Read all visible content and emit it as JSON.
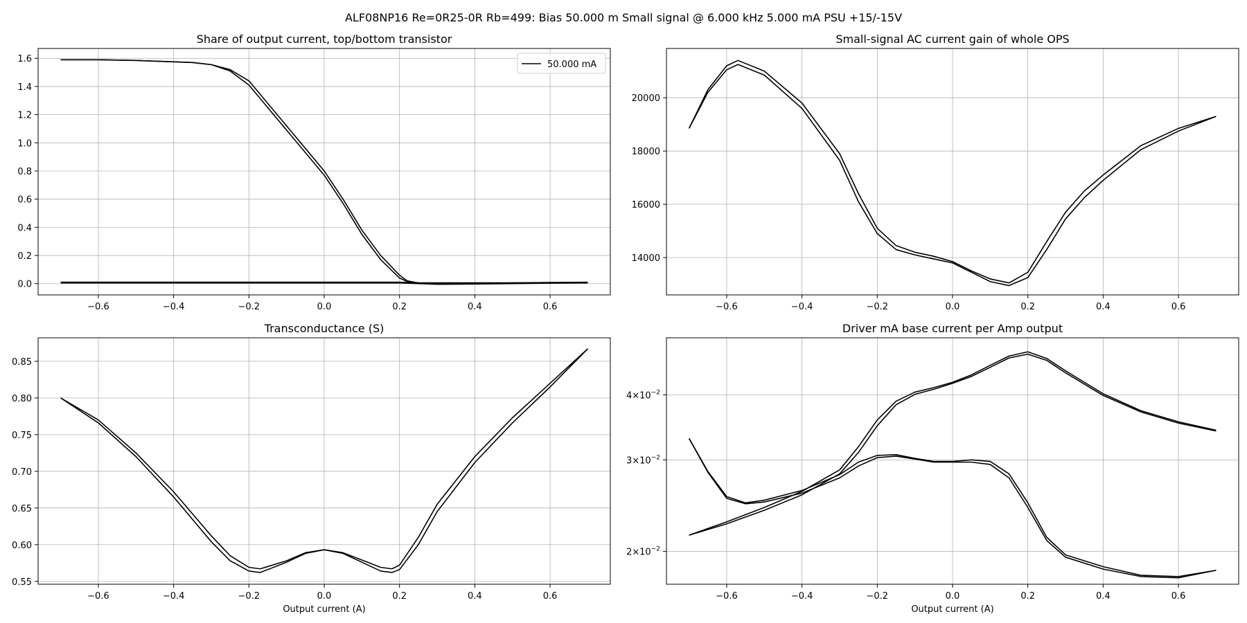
{
  "figure_title": "ALF08NP16 Re=0R25-0R Rb=499: Bias 50.000 m Small signal @ 6.000 kHz 5.000 mA PSU +15/-15V",
  "chart_data": [
    {
      "id": "share",
      "type": "line",
      "title": "Share of output current, top/bottom transistor",
      "xlabel": "",
      "ylabel": "",
      "xlim": [
        -0.76,
        0.76
      ],
      "ylim": [
        -0.08,
        1.67
      ],
      "xticks": [
        -0.6,
        -0.4,
        -0.2,
        0.0,
        0.2,
        0.4,
        0.6
      ],
      "xtick_labels": [
        "−0.6",
        "−0.4",
        "−0.2",
        "0.0",
        "0.2",
        "0.4",
        "0.6"
      ],
      "yticks": [
        0.0,
        0.2,
        0.4,
        0.6,
        0.8,
        1.0,
        1.2,
        1.4,
        1.6
      ],
      "ytick_labels": [
        "0.0",
        "0.2",
        "0.4",
        "0.6",
        "0.8",
        "1.0",
        "1.2",
        "1.4",
        "1.6"
      ],
      "grid": true,
      "legend": {
        "position": "top-right",
        "entries": [
          "50.000 mA"
        ]
      },
      "series": [
        {
          "name": "50.000 mA",
          "x": [
            -0.7,
            -0.6,
            -0.5,
            -0.4,
            -0.35,
            -0.3,
            -0.25,
            -0.2,
            -0.15,
            -0.1,
            -0.05,
            0.0,
            0.05,
            0.1,
            0.15,
            0.2,
            0.22,
            0.25,
            0.3,
            0.4,
            0.5,
            0.6,
            0.7
          ],
          "y": [
            1.59,
            1.59,
            1.585,
            1.575,
            1.57,
            1.555,
            1.52,
            1.44,
            1.28,
            1.12,
            0.96,
            0.8,
            0.6,
            0.38,
            0.2,
            0.06,
            0.02,
            0.005,
            0.005,
            0.005,
            0.005,
            0.005,
            0.005
          ]
        },
        {
          "x": [
            -0.7,
            -0.6,
            -0.5,
            -0.4,
            -0.35,
            -0.3,
            -0.25,
            -0.2,
            -0.15,
            -0.1,
            -0.05,
            0.0,
            0.05,
            0.1,
            0.15,
            0.2,
            0.22,
            0.25,
            0.3,
            0.4,
            0.5,
            0.6,
            0.7
          ],
          "y": [
            1.59,
            1.59,
            1.585,
            1.575,
            1.57,
            1.555,
            1.51,
            1.41,
            1.25,
            1.09,
            0.93,
            0.77,
            0.57,
            0.35,
            0.17,
            0.04,
            0.015,
            0.005,
            0.005,
            0.005,
            0.005,
            0.005,
            0.005
          ]
        },
        {
          "x": [
            -0.7,
            -0.4,
            -0.2,
            0.0,
            0.2,
            0.25,
            0.3,
            0.4,
            0.5,
            0.6,
            0.7
          ],
          "y": [
            0.01,
            0.01,
            0.01,
            0.01,
            0.01,
            0.005,
            0.0,
            0.0,
            0.005,
            0.008,
            0.01
          ]
        },
        {
          "x": [
            -0.7,
            -0.4,
            -0.2,
            0.0,
            0.2,
            0.25,
            0.3,
            0.4,
            0.5,
            0.6,
            0.7
          ],
          "y": [
            0.005,
            0.005,
            0.005,
            0.005,
            0.005,
            0.0,
            -0.005,
            -0.003,
            0.0,
            0.003,
            0.005
          ]
        }
      ]
    },
    {
      "id": "gain",
      "type": "line",
      "title": "Small-signal AC current gain of whole OPS",
      "xlabel": "",
      "ylabel": "",
      "xlim": [
        -0.76,
        0.76
      ],
      "ylim": [
        12600,
        21850
      ],
      "xticks": [
        -0.6,
        -0.4,
        -0.2,
        0.0,
        0.2,
        0.4,
        0.6
      ],
      "xtick_labels": [
        "−0.6",
        "−0.4",
        "−0.2",
        "0.0",
        "0.2",
        "0.4",
        "0.6"
      ],
      "yticks": [
        14000,
        16000,
        18000,
        20000
      ],
      "ytick_labels": [
        "14000",
        "16000",
        "18000",
        "20000"
      ],
      "grid": true,
      "series": [
        {
          "x": [
            -0.7,
            -0.65,
            -0.6,
            -0.57,
            -0.5,
            -0.4,
            -0.3,
            -0.25,
            -0.2,
            -0.15,
            -0.1,
            -0.05,
            0.0,
            0.05,
            0.1,
            0.15,
            0.2,
            0.25,
            0.3,
            0.35,
            0.4,
            0.5,
            0.6,
            0.7
          ],
          "y": [
            18850,
            20300,
            21200,
            21400,
            21000,
            19800,
            17900,
            16400,
            15100,
            14450,
            14200,
            14050,
            13850,
            13500,
            13200,
            13050,
            13450,
            14600,
            15700,
            16500,
            17100,
            18200,
            18850,
            19300
          ]
        },
        {
          "x": [
            -0.7,
            -0.65,
            -0.6,
            -0.57,
            -0.5,
            -0.4,
            -0.3,
            -0.25,
            -0.2,
            -0.15,
            -0.1,
            -0.05,
            0.0,
            0.05,
            0.1,
            0.15,
            0.2,
            0.25,
            0.3,
            0.35,
            0.4,
            0.5,
            0.6,
            0.7
          ],
          "y": [
            18850,
            20200,
            21050,
            21250,
            20850,
            19600,
            17650,
            16100,
            14900,
            14300,
            14100,
            13950,
            13800,
            13450,
            13100,
            12950,
            13250,
            14300,
            15450,
            16250,
            16900,
            18050,
            18750,
            19300
          ]
        }
      ]
    },
    {
      "id": "gm",
      "type": "line",
      "title": "Transconductance (S)",
      "xlabel": "Output current (A)",
      "ylabel": "",
      "xlim": [
        -0.76,
        0.76
      ],
      "ylim": [
        0.546,
        0.882
      ],
      "xticks": [
        -0.6,
        -0.4,
        -0.2,
        0.0,
        0.2,
        0.4,
        0.6
      ],
      "xtick_labels": [
        "−0.6",
        "−0.4",
        "−0.2",
        "0.0",
        "0.2",
        "0.4",
        "0.6"
      ],
      "yticks": [
        0.55,
        0.6,
        0.65,
        0.7,
        0.75,
        0.8,
        0.85
      ],
      "ytick_labels": [
        "0.55",
        "0.60",
        "0.65",
        "0.70",
        "0.75",
        "0.80",
        "0.85"
      ],
      "grid": true,
      "series": [
        {
          "x": [
            -0.7,
            -0.6,
            -0.5,
            -0.4,
            -0.3,
            -0.25,
            -0.2,
            -0.17,
            -0.1,
            -0.05,
            0.0,
            0.05,
            0.1,
            0.15,
            0.18,
            0.2,
            0.25,
            0.3,
            0.4,
            0.5,
            0.6,
            0.7
          ],
          "y": [
            0.8,
            0.77,
            0.725,
            0.672,
            0.612,
            0.585,
            0.569,
            0.567,
            0.578,
            0.589,
            0.593,
            0.589,
            0.579,
            0.569,
            0.567,
            0.572,
            0.61,
            0.655,
            0.72,
            0.773,
            0.82,
            0.867
          ]
        },
        {
          "x": [
            -0.7,
            -0.6,
            -0.5,
            -0.4,
            -0.3,
            -0.25,
            -0.2,
            -0.17,
            -0.1,
            -0.05,
            0.0,
            0.05,
            0.1,
            0.15,
            0.18,
            0.2,
            0.25,
            0.3,
            0.4,
            0.5,
            0.6,
            0.7
          ],
          "y": [
            0.8,
            0.766,
            0.72,
            0.665,
            0.604,
            0.578,
            0.564,
            0.562,
            0.576,
            0.588,
            0.593,
            0.588,
            0.576,
            0.564,
            0.562,
            0.566,
            0.6,
            0.645,
            0.712,
            0.766,
            0.815,
            0.867
          ]
        }
      ]
    },
    {
      "id": "driver",
      "type": "line",
      "title": "Driver mA base current per Amp output",
      "xlabel": "Output current (A)",
      "ylabel": "",
      "yscale": "log",
      "xlim": [
        -0.76,
        0.76
      ],
      "ylim": [
        0.0173,
        0.0515
      ],
      "xticks": [
        -0.6,
        -0.4,
        -0.2,
        0.0,
        0.2,
        0.4,
        0.6
      ],
      "xtick_labels": [
        "−0.6",
        "−0.4",
        "−0.2",
        "0.0",
        "0.2",
        "0.4",
        "0.6"
      ],
      "yticks": [
        0.02,
        0.03,
        0.04
      ],
      "ytick_labels": [
        {
          "mantissa": "2",
          "base": "10",
          "exponent": "−2"
        },
        {
          "mantissa": "3",
          "base": "10",
          "exponent": "−2"
        },
        {
          "mantissa": "4",
          "base": "10",
          "exponent": "−2"
        }
      ],
      "grid": true,
      "series": [
        {
          "x": [
            -0.7,
            -0.6,
            -0.5,
            -0.4,
            -0.3,
            -0.25,
            -0.2,
            -0.15,
            -0.1,
            -0.05,
            0.0,
            0.05,
            0.1,
            0.15,
            0.2,
            0.25,
            0.3,
            0.4,
            0.5,
            0.6,
            0.7
          ],
          "y": [
            0.0215,
            0.0228,
            0.0243,
            0.0261,
            0.0287,
            0.0318,
            0.0358,
            0.0389,
            0.0405,
            0.0413,
            0.0423,
            0.0437,
            0.0456,
            0.0475,
            0.0484,
            0.047,
            0.0445,
            0.0402,
            0.0373,
            0.0355,
            0.0342
          ]
        },
        {
          "x": [
            -0.7,
            -0.6,
            -0.5,
            -0.4,
            -0.3,
            -0.25,
            -0.2,
            -0.15,
            -0.1,
            -0.05,
            0.0,
            0.05,
            0.1,
            0.15,
            0.2,
            0.25,
            0.3,
            0.4,
            0.5,
            0.6,
            0.7
          ],
          "y": [
            0.0215,
            0.0226,
            0.024,
            0.0257,
            0.0282,
            0.031,
            0.0349,
            0.0383,
            0.0401,
            0.041,
            0.0421,
            0.0434,
            0.0452,
            0.0471,
            0.0479,
            0.0466,
            0.0441,
            0.0399,
            0.0371,
            0.0353,
            0.0341
          ]
        },
        {
          "x": [
            -0.7,
            -0.65,
            -0.6,
            -0.55,
            -0.5,
            -0.4,
            -0.3,
            -0.25,
            -0.2,
            -0.15,
            -0.1,
            -0.05,
            0.0,
            0.05,
            0.1,
            0.15,
            0.2,
            0.25,
            0.3,
            0.4,
            0.5,
            0.6,
            0.7
          ],
          "y": [
            0.033,
            0.0285,
            0.0255,
            0.0248,
            0.0251,
            0.0262,
            0.0281,
            0.0297,
            0.0306,
            0.0307,
            0.0302,
            0.0298,
            0.0298,
            0.03,
            0.0298,
            0.0282,
            0.0248,
            0.0213,
            0.0197,
            0.0187,
            0.018,
            0.0179,
            0.0184
          ]
        },
        {
          "x": [
            -0.7,
            -0.65,
            -0.6,
            -0.55,
            -0.5,
            -0.4,
            -0.3,
            -0.25,
            -0.2,
            -0.15,
            -0.1,
            -0.05,
            0.0,
            0.05,
            0.1,
            0.15,
            0.2,
            0.25,
            0.3,
            0.4,
            0.5,
            0.6,
            0.7
          ],
          "y": [
            0.033,
            0.0284,
            0.0253,
            0.0247,
            0.0249,
            0.0259,
            0.0277,
            0.0292,
            0.0303,
            0.0305,
            0.0301,
            0.0297,
            0.0297,
            0.0297,
            0.0294,
            0.0277,
            0.0243,
            0.021,
            0.0195,
            0.0185,
            0.0179,
            0.0178,
            0.0184
          ]
        }
      ]
    }
  ]
}
